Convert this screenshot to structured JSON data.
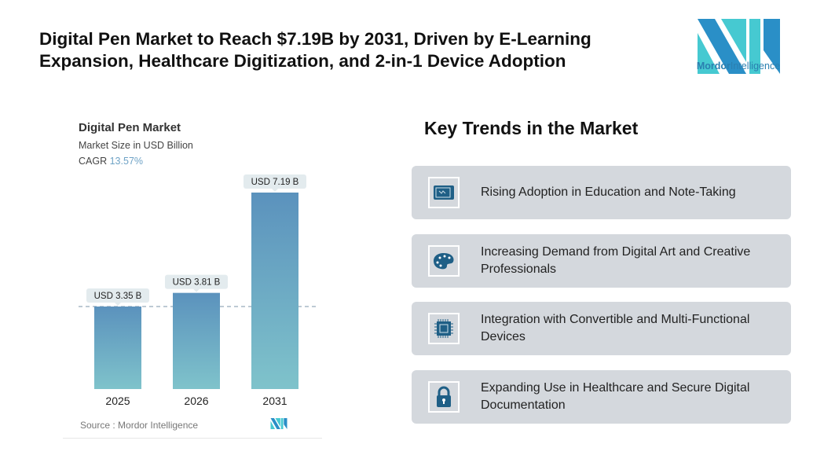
{
  "headline": "Digital Pen Market to Reach $7.19B by 2031, Driven by E-Learning Expansion, Healthcare Digitization, and 2-in-1 Device Adoption",
  "logo": {
    "name_bold": "Mordor",
    "name_rest": "Intelligence",
    "colors": [
      "#2a8fc7",
      "#46c9d1"
    ]
  },
  "chart_data": {
    "type": "bar",
    "title": "Digital Pen Market",
    "subtitle": "Market Size in USD Billion",
    "cagr_label": "CAGR",
    "cagr_value": "13.57%",
    "categories": [
      "2025",
      "2026",
      "2031"
    ],
    "values": [
      3.35,
      3.81,
      7.19
    ],
    "data_labels": [
      "USD 3.35 B",
      "USD 3.81 B",
      "USD 7.19 B"
    ],
    "reference_line": "dashed at 2025 value",
    "bar_gradient": [
      "#5b92bd",
      "#7fc3cb"
    ],
    "source": "Source :  Mordor Intelligence"
  },
  "trends": {
    "title": "Key Trends in the Market",
    "items": [
      {
        "icon": "tablet-pen-icon",
        "label": "Rising Adoption in Education and Note-Taking"
      },
      {
        "icon": "palette-icon",
        "label": "Increasing Demand from Digital Art and Creative Professionals"
      },
      {
        "icon": "chip-icon",
        "label": "Integration with Convertible and Multi-Functional Devices"
      },
      {
        "icon": "lock-icon",
        "label": "Expanding Use in Healthcare and Secure Digital Documentation"
      }
    ],
    "icon_color": "#1f5f86"
  }
}
